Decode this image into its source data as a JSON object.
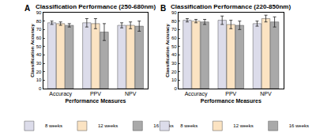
{
  "chart_data": [
    {
      "type": "bar",
      "title": "Classification Performance (250-680nm)",
      "annotations": [
        "A"
      ],
      "x_label": "Performance Measures",
      "y_label": "Classification Accuracy",
      "categories": [
        "Accuracy",
        "PPV",
        "NPV"
      ],
      "series": [
        {
          "name": "8 weeks",
          "color": "#dcdcea",
          "values": [
            78,
            78,
            75
          ],
          "errors": [
            2,
            5,
            3
          ]
        },
        {
          "name": "12 weeks",
          "color": "#fbe3c2",
          "values": [
            77,
            77,
            75
          ],
          "errors": [
            2,
            6,
            4
          ]
        },
        {
          "name": "16 weeks",
          "color": "#a9a9a9",
          "values": [
            75,
            67,
            74
          ],
          "errors": [
            2,
            10,
            6
          ]
        }
      ],
      "ylim": [
        0,
        90
      ],
      "yticks": [
        0,
        10,
        20,
        30,
        40,
        50,
        60,
        70,
        80,
        90
      ],
      "grid": false
    },
    {
      "type": "bar",
      "title": "Classification Performance (220-850nm)",
      "annotations": [
        "B"
      ],
      "x_label": "Performance Measures",
      "y_label": "Classification Accuracy",
      "categories": [
        "Accuracy",
        "PPV",
        "NPV"
      ],
      "series": [
        {
          "name": "8 weeks",
          "color": "#dcdcea",
          "values": [
            81,
            81,
            77
          ],
          "errors": [
            2,
            5,
            3
          ]
        },
        {
          "name": "12 weeks",
          "color": "#fbe3c2",
          "values": [
            80,
            76,
            83
          ],
          "errors": [
            2,
            5,
            4
          ]
        },
        {
          "name": "16 weeks",
          "color": "#a9a9a9",
          "values": [
            79,
            75,
            79
          ],
          "errors": [
            3,
            5,
            6
          ]
        }
      ],
      "ylim": [
        0,
        90
      ],
      "yticks": [
        0,
        10,
        20,
        30,
        40,
        50,
        60,
        70,
        80,
        90
      ],
      "grid": false
    }
  ]
}
